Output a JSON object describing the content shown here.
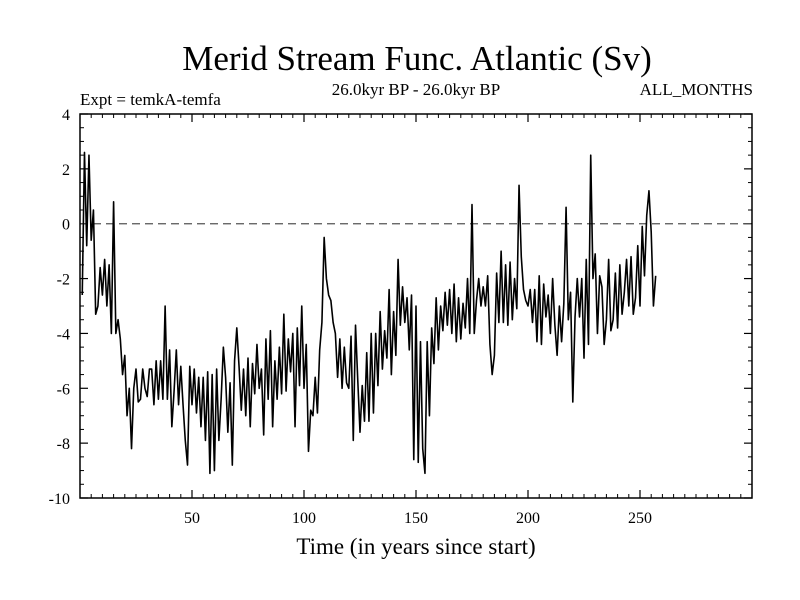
{
  "chart_data": {
    "type": "line",
    "title": "Merid Stream Func. Atlantic (Sv)",
    "subtitle": "26.0kyr BP - 26.0kyr BP",
    "left_label": "Expt = temkA-temfa",
    "right_label": "ALL_MONTHS",
    "xlabel": "Time (in years since start)",
    "ylabel": "",
    "xlim": [
      0,
      300
    ],
    "ylim": [
      -10,
      4
    ],
    "x_ticks": [
      50,
      100,
      150,
      200,
      250
    ],
    "y_ticks": [
      4,
      2,
      0,
      -2,
      -4,
      -6,
      -8,
      -10
    ],
    "reference_line": 0,
    "series": [
      {
        "name": "Merid Stream Func. Atlantic",
        "x_start": 1,
        "x_step": 1,
        "values": [
          -2.6,
          2.6,
          -0.8,
          2.5,
          -0.6,
          0.5,
          -3.3,
          -3.0,
          -1.6,
          -2.6,
          -1.3,
          -3.0,
          -1.5,
          -4.0,
          0.8,
          -4.0,
          -3.5,
          -4.2,
          -5.5,
          -4.8,
          -7.0,
          -6.0,
          -8.2,
          -6.0,
          -5.3,
          -6.5,
          -6.4,
          -5.3,
          -6.0,
          -6.3,
          -5.3,
          -5.3,
          -6.6,
          -5.0,
          -6.4,
          -5.0,
          -6.4,
          -3.0,
          -6.4,
          -4.6,
          -7.4,
          -6.1,
          -4.6,
          -6.6,
          -5.2,
          -6.6,
          -7.9,
          -8.8,
          -5.2,
          -6.6,
          -5.3,
          -6.9,
          -5.6,
          -7.4,
          -5.6,
          -7.9,
          -5.4,
          -9.1,
          -5.5,
          -9.0,
          -5.3,
          -7.9,
          -6.4,
          -4.5,
          -5.6,
          -7.6,
          -5.8,
          -8.8,
          -5.0,
          -3.8,
          -5.2,
          -6.8,
          -5.3,
          -7.0,
          -4.9,
          -7.4,
          -5.1,
          -6.2,
          -4.4,
          -6.0,
          -5.3,
          -7.7,
          -4.2,
          -6.4,
          -3.9,
          -7.4,
          -5.0,
          -6.4,
          -4.5,
          -6.2,
          -3.3,
          -6.1,
          -4.2,
          -5.4,
          -4.0,
          -7.4,
          -3.8,
          -5.9,
          -3.0,
          -6.0,
          -4.4,
          -8.3,
          -6.8,
          -7.0,
          -5.6,
          -6.9,
          -4.6,
          -3.6,
          -0.5,
          -2.0,
          -2.6,
          -2.8,
          -3.6,
          -4.0,
          -5.6,
          -4.2,
          -6.0,
          -4.5,
          -5.8,
          -6.0,
          -4.1,
          -7.9,
          -3.7,
          -5.7,
          -7.6,
          -5.9,
          -7.2,
          -4.7,
          -7.2,
          -4.0,
          -6.9,
          -4.0,
          -5.9,
          -3.2,
          -5.3,
          -3.9,
          -4.9,
          -2.4,
          -5.5,
          -3.2,
          -4.8,
          -1.3,
          -3.7,
          -2.3,
          -3.6,
          -2.7,
          -4.6,
          -2.6,
          -8.6,
          -3.0,
          -8.7,
          -4.3,
          -8.2,
          -9.1,
          -4.3,
          -7.0,
          -3.8,
          -5.1,
          -2.7,
          -4.6,
          -3.0,
          -3.9,
          -2.5,
          -3.7,
          -2.4,
          -4.0,
          -2.2,
          -4.3,
          -2.7,
          -4.2,
          -2.9,
          -3.8,
          -2.0,
          -4.0,
          0.7,
          -4.0,
          -2.8,
          -2.0,
          -3.0,
          -2.3,
          -3.0,
          -1.9,
          -4.4,
          -5.5,
          -4.8,
          -1.8,
          -3.6,
          -1.0,
          -3.6,
          -1.5,
          -3.7,
          -1.4,
          -3.5,
          -2.0,
          -3.1,
          1.4,
          -1.2,
          -2.4,
          -2.8,
          -3.0,
          -2.4,
          -3.6,
          -2.4,
          -4.3,
          -1.9,
          -4.4,
          -2.2,
          -3.4,
          -2.6,
          -4.0,
          -2.0,
          -3.7,
          -4.8,
          -3.0,
          -4.3,
          -2.9,
          0.6,
          -3.5,
          -2.5,
          -6.5,
          -3.4,
          -2.0,
          -3.4,
          -2.0,
          -4.9,
          -1.3,
          -4.4,
          2.5,
          -2.0,
          -1.1,
          -4.0,
          -1.9,
          -2.3,
          -4.4,
          -3.5,
          -1.3,
          -3.9,
          -3.5,
          -1.8,
          -3.8,
          -1.5,
          -3.3,
          -2.5,
          -1.3,
          -3.0,
          -1.2,
          -3.3,
          -2.7,
          -0.8,
          -3.0,
          -0.1,
          -1.9,
          0.3,
          1.2,
          -0.3,
          -3.0,
          -1.9
        ]
      }
    ]
  }
}
